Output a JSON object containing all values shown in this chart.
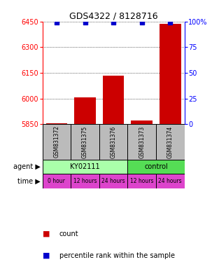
{
  "title": "GDS4322 / 8128716",
  "samples": [
    "GSM831372",
    "GSM831375",
    "GSM831376",
    "GSM831373",
    "GSM831374"
  ],
  "counts": [
    5853,
    6007,
    6133,
    5870,
    6437
  ],
  "percentiles": [
    99,
    99,
    99,
    99,
    99
  ],
  "ylim_left": [
    5850,
    6450
  ],
  "ylim_right": [
    0,
    100
  ],
  "yticks_left": [
    5850,
    6000,
    6150,
    6300,
    6450
  ],
  "yticks_right": [
    0,
    25,
    50,
    75,
    100
  ],
  "bar_color": "#cc0000",
  "dot_color": "#0000cc",
  "agent_labels": [
    {
      "label": "KY02111",
      "start": 0,
      "end": 3,
      "color": "#aaffaa"
    },
    {
      "label": "control",
      "start": 3,
      "end": 5,
      "color": "#55dd55"
    }
  ],
  "time_labels": [
    "0 hour",
    "12 hours",
    "24 hours",
    "12 hours",
    "24 hours"
  ],
  "time_color": "#dd44cc",
  "sample_bg_color": "#bbbbbb",
  "legend_count_color": "#cc0000",
  "legend_pct_color": "#0000cc"
}
